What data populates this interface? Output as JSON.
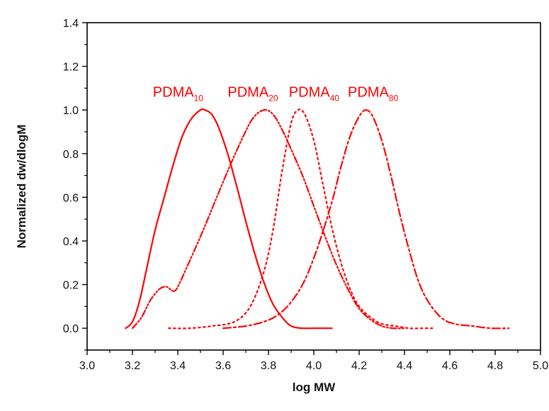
{
  "chart_data": {
    "type": "line",
    "title": "",
    "xlabel": "log MW",
    "ylabel": "Normalized dw/dlogM",
    "xlim": [
      3.0,
      5.0
    ],
    "ylim": [
      -0.1,
      1.4
    ],
    "x_ticks": [
      3.0,
      3.2,
      3.4,
      3.6,
      3.8,
      4.0,
      4.2,
      4.4,
      4.6,
      4.8,
      5.0
    ],
    "x_tick_labels": [
      "3.0",
      "3.2",
      "3.4",
      "3.6",
      "3.8",
      "4.0",
      "4.2",
      "4.4",
      "4.6",
      "4.8",
      "5.0"
    ],
    "y_ticks": [
      0.0,
      0.2,
      0.4,
      0.6,
      0.8,
      1.0,
      1.2,
      1.4
    ],
    "y_tick_labels": [
      "0.0",
      "0.2",
      "0.4",
      "0.6",
      "0.8",
      "1.0",
      "1.2",
      "1.4"
    ],
    "grid": false,
    "series_color": "#ff0000",
    "series": [
      {
        "name": "PDMA",
        "subscript": "10",
        "style": "solid",
        "x": [
          3.17,
          3.2,
          3.23,
          3.26,
          3.3,
          3.34,
          3.38,
          3.42,
          3.46,
          3.5,
          3.52,
          3.55,
          3.58,
          3.62,
          3.66,
          3.7,
          3.74,
          3.78,
          3.82,
          3.86,
          3.9,
          3.95,
          4.0,
          4.08
        ],
        "values": [
          0.0,
          0.03,
          0.12,
          0.26,
          0.45,
          0.6,
          0.75,
          0.88,
          0.96,
          1.0,
          1.0,
          0.98,
          0.92,
          0.8,
          0.65,
          0.49,
          0.34,
          0.21,
          0.11,
          0.05,
          0.01,
          0.0,
          0.0,
          0.0
        ]
      },
      {
        "name": "PDMA",
        "subscript": "20",
        "style": "dash-dot-dot",
        "x": [
          3.2,
          3.24,
          3.28,
          3.32,
          3.35,
          3.38,
          3.4,
          3.44,
          3.5,
          3.56,
          3.62,
          3.68,
          3.73,
          3.78,
          3.82,
          3.86,
          3.9,
          3.95,
          4.0,
          4.05,
          4.1,
          4.15,
          4.2,
          4.25,
          4.3,
          4.35,
          4.4
        ],
        "values": [
          0.0,
          0.05,
          0.13,
          0.18,
          0.19,
          0.17,
          0.19,
          0.28,
          0.42,
          0.57,
          0.72,
          0.86,
          0.96,
          1.0,
          0.98,
          0.91,
          0.82,
          0.7,
          0.56,
          0.42,
          0.29,
          0.18,
          0.09,
          0.04,
          0.01,
          0.0,
          0.0
        ]
      },
      {
        "name": "PDMA",
        "subscript": "40",
        "style": "dotted",
        "x": [
          3.36,
          3.45,
          3.55,
          3.65,
          3.72,
          3.78,
          3.82,
          3.86,
          3.9,
          3.93,
          3.96,
          4.0,
          4.04,
          4.08,
          4.12,
          4.16,
          4.2,
          4.25,
          4.3,
          4.36,
          4.42,
          4.48,
          4.53
        ],
        "values": [
          0.0,
          0.0,
          0.01,
          0.03,
          0.1,
          0.26,
          0.45,
          0.72,
          0.94,
          1.0,
          0.98,
          0.86,
          0.66,
          0.46,
          0.3,
          0.18,
          0.1,
          0.05,
          0.02,
          0.01,
          0.0,
          0.0,
          0.0
        ]
      },
      {
        "name": "PDMA",
        "subscript": "80",
        "style": "dash-dot",
        "x": [
          3.6,
          3.7,
          3.78,
          3.84,
          3.9,
          3.96,
          4.02,
          4.08,
          4.12,
          4.16,
          4.2,
          4.23,
          4.26,
          4.3,
          4.34,
          4.38,
          4.42,
          4.46,
          4.5,
          4.56,
          4.62,
          4.7,
          4.78,
          4.86
        ],
        "values": [
          0.0,
          0.01,
          0.03,
          0.06,
          0.12,
          0.22,
          0.38,
          0.58,
          0.74,
          0.88,
          0.97,
          1.0,
          0.97,
          0.86,
          0.7,
          0.52,
          0.36,
          0.22,
          0.13,
          0.05,
          0.02,
          0.01,
          0.0,
          0.0
        ]
      }
    ],
    "annotations": [
      {
        "text": "PDMA",
        "subscript": "10",
        "x": 3.29,
        "y": 1.06
      },
      {
        "text": "PDMA",
        "subscript": "20",
        "x": 3.62,
        "y": 1.06
      },
      {
        "text": "PDMA",
        "subscript": "40",
        "x": 3.89,
        "y": 1.06
      },
      {
        "text": "PDMA",
        "subscript": "80",
        "x": 4.15,
        "y": 1.06
      }
    ]
  }
}
